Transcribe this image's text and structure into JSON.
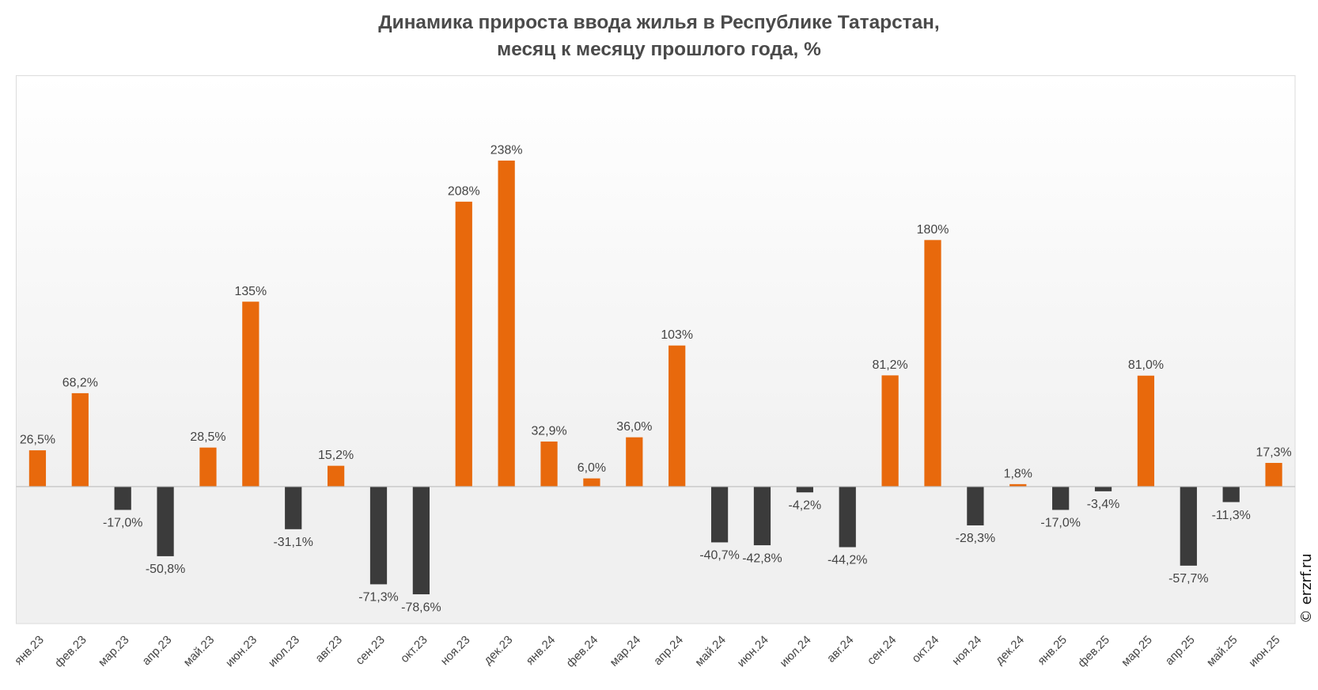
{
  "chart_data": {
    "type": "bar",
    "title": [
      "Динамика прироста ввода жилья в Республике Татарстан,",
      "месяц к месяцу прошлого года, %"
    ],
    "xlabel": "",
    "ylabel": "",
    "ylim": [
      -100,
      300
    ],
    "grid": false,
    "categories": [
      "янв.23",
      "фев.23",
      "мар.23",
      "апр.23",
      "май.23",
      "июн.23",
      "июл.23",
      "авг.23",
      "сен.23",
      "окт.23",
      "ноя.23",
      "дек.23",
      "янв.24",
      "фев.24",
      "мар.24",
      "апр.24",
      "май.24",
      "июн.24",
      "июл.24",
      "авг.24",
      "сен.24",
      "окт.24",
      "ноя.24",
      "дек.24",
      "янв.25",
      "фев.25",
      "мар.25",
      "апр.25",
      "май.25",
      "июн.25"
    ],
    "values": [
      26.5,
      68.2,
      -17.0,
      -50.8,
      28.5,
      135,
      -31.1,
      15.2,
      -71.3,
      -78.6,
      208,
      238,
      32.9,
      6.0,
      36.0,
      103,
      -40.7,
      -42.8,
      -4.2,
      -44.2,
      81.2,
      180,
      -28.3,
      1.8,
      -17.0,
      -3.4,
      81.0,
      -57.7,
      -11.3,
      17.3
    ],
    "data_labels": [
      "26,5%",
      "68,2%",
      "-17,0%",
      "-50,8%",
      "28,5%",
      "135%",
      "-31,1%",
      "15,2%",
      "-71,3%",
      "-78,6%",
      "208%",
      "238%",
      "32,9%",
      "6,0%",
      "36,0%",
      "103%",
      "-40,7%",
      "-42,8%",
      "-4,2%",
      "-44,2%",
      "81,2%",
      "180%",
      "-28,3%",
      "1,8%",
      "-17,0%",
      "-3,4%",
      "81,0%",
      "-57,7%",
      "-11,3%",
      "17,3%"
    ],
    "colors": {
      "positive": "#e8690c",
      "negative": "#3b3b3b"
    }
  },
  "copyright": "© erzrf.ru"
}
